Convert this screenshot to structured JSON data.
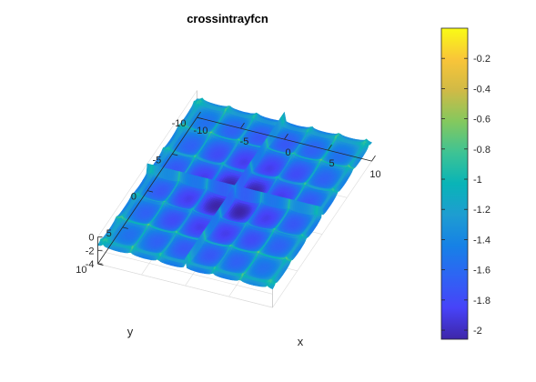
{
  "chart_data": {
    "type": "surface",
    "title": "crossintrayfcn",
    "xlabel": "x",
    "ylabel": "y",
    "zlabel": "",
    "xlim": [
      -10,
      10
    ],
    "ylim": [
      -10,
      10
    ],
    "zlim": [
      -4,
      0
    ],
    "x_ticks": [
      "-10",
      "-5",
      "0",
      "5",
      "10"
    ],
    "y_ticks": [
      "-10",
      "-5",
      "0",
      "5",
      "10"
    ],
    "z_ticks": [
      "0",
      "-2",
      "-4"
    ],
    "grid": true,
    "view": "rotated 3-D view from above",
    "function": "crossintrayfcn",
    "colormap": "parula",
    "colorbar": {
      "limits": [
        -2.06,
        0
      ],
      "ticks": [
        "-0.2",
        "-0.4",
        "-0.6",
        "-0.8",
        "-1",
        "-1.2",
        "-1.4",
        "-1.6",
        "-1.8",
        "-2"
      ],
      "tick_values": [
        -0.2,
        -0.4,
        -0.6,
        -0.8,
        -1.0,
        -1.2,
        -1.4,
        -1.6,
        -1.8,
        -2.0
      ],
      "placement": "right"
    },
    "series": [
      {
        "x_range": [
          -10,
          10
        ],
        "y_range": [
          -10,
          10
        ],
        "z_min": -2.0626,
        "z_max": -0.0001
      }
    ]
  }
}
